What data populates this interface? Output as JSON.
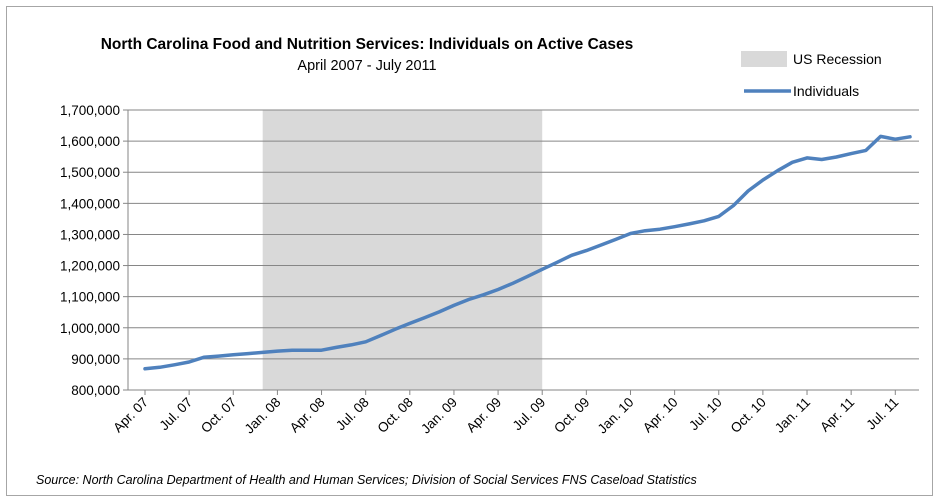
{
  "chart_data": {
    "type": "line",
    "title": "North Carolina Food and Nutrition Services: Individuals on Active Cases",
    "subtitle": "April 2007 - July 2011",
    "source": "Source: North Carolina Department of Health and Human Services; Division of Social Services FNS Caseload Statistics",
    "xlabel": "",
    "ylabel": "",
    "ylim": [
      800000,
      1700000
    ],
    "y_ticks": [
      "800,000",
      "900,000",
      "1,000,000",
      "1,100,000",
      "1,200,000",
      "1,300,000",
      "1,400,000",
      "1,500,000",
      "1,600,000",
      "1,700,000"
    ],
    "x_ticks": [
      "Apr. 07",
      "Jul. 07",
      "Oct. 07",
      "Jan. 08",
      "Apr. 08",
      "Jul. 08",
      "Oct. 08",
      "Jan. 09",
      "Apr. 09",
      "Jul. 09",
      "Oct. 09",
      "Jan. 10",
      "Apr. 10",
      "Jul. 10",
      "Oct. 10",
      "Jan. 11",
      "Apr. 11",
      "Jul. 11"
    ],
    "grid": "horizontal",
    "legend": {
      "position": "top-right",
      "entries": [
        "US Recession",
        "Individuals"
      ]
    },
    "recession": {
      "label": "US Recession",
      "start_month_index": 8,
      "end_month_index": 27,
      "color": "#d9d9d9"
    },
    "series": [
      {
        "name": "Individuals",
        "color": "#4f81bd",
        "values": [
          868000,
          873000,
          881000,
          890000,
          905000,
          909000,
          913000,
          917000,
          921000,
          925000,
          928000,
          928000,
          928000,
          937000,
          945000,
          955000,
          975000,
          995000,
          1014000,
          1032000,
          1051000,
          1072000,
          1091000,
          1106000,
          1123000,
          1143000,
          1165000,
          1188000,
          1210000,
          1233000,
          1248000,
          1266000,
          1284000,
          1303000,
          1312000,
          1317000,
          1325000,
          1334000,
          1344000,
          1358000,
          1393000,
          1440000,
          1475000,
          1505000,
          1532000,
          1546000,
          1541000,
          1549000,
          1560000,
          1570000,
          1615000,
          1606000,
          1614000
        ]
      }
    ]
  }
}
